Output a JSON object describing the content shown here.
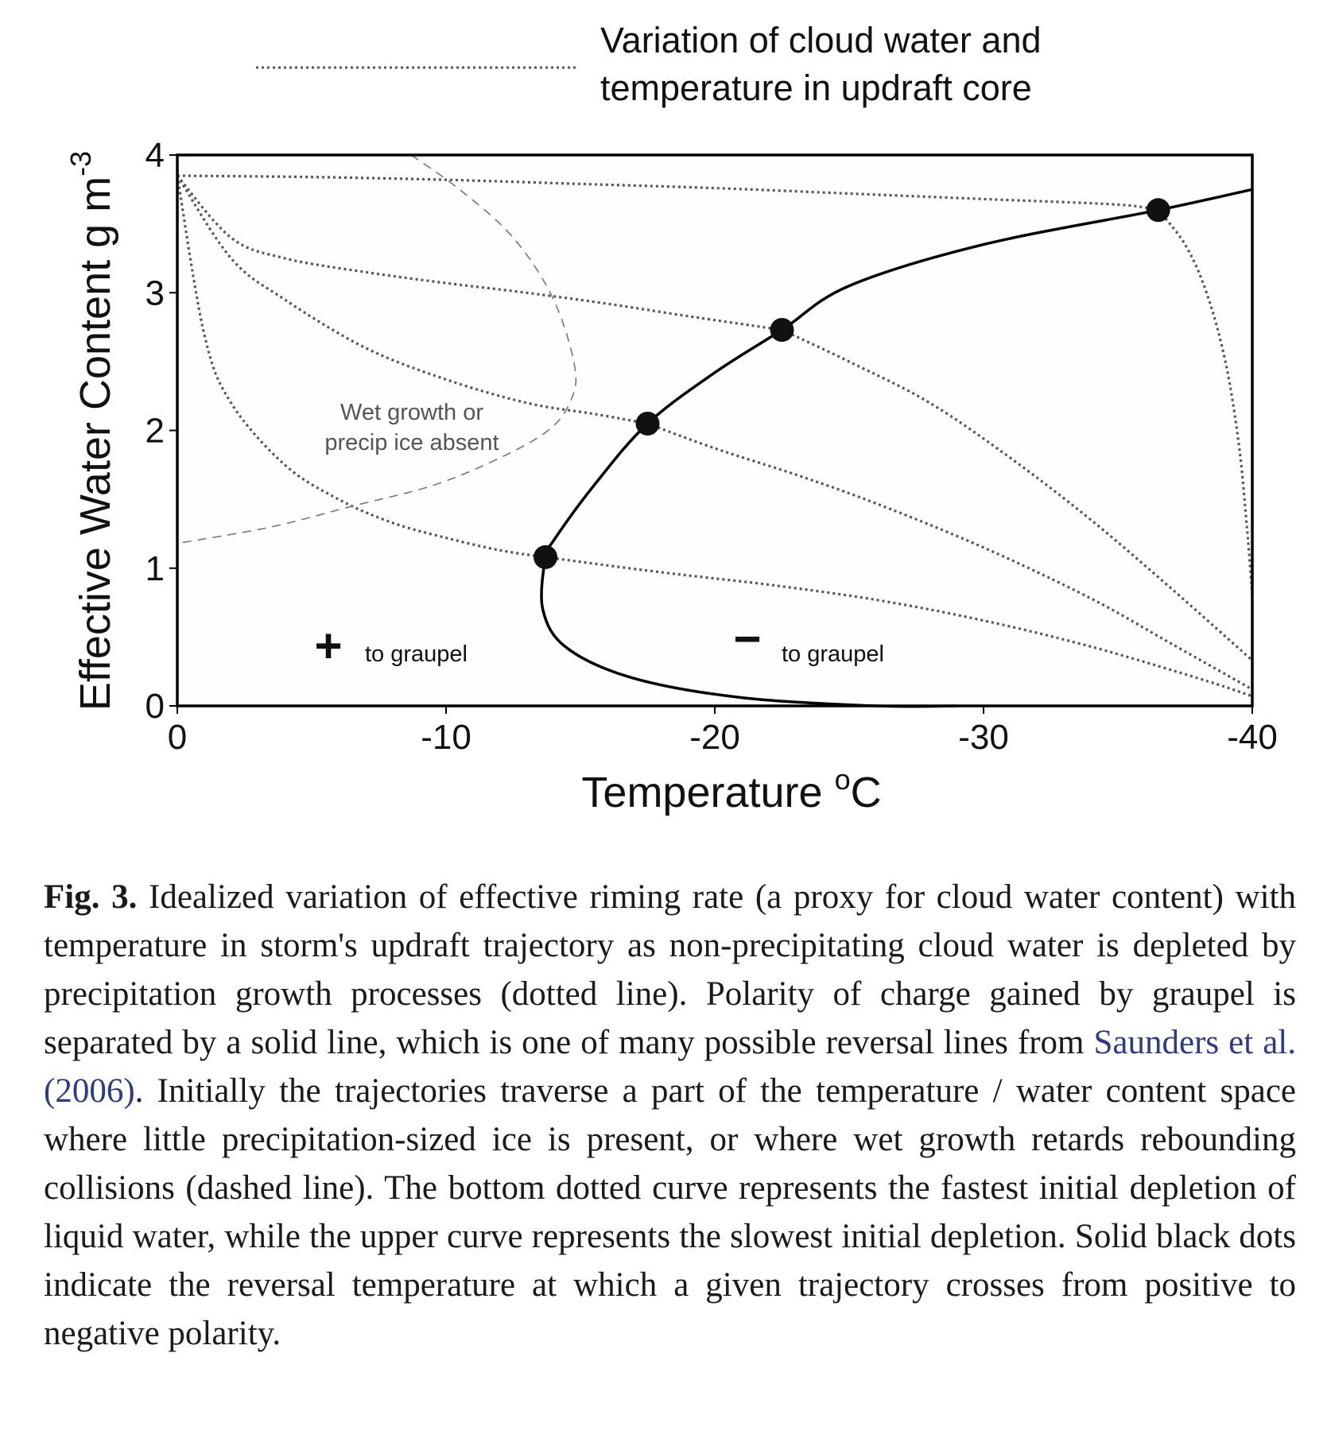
{
  "chart_data": {
    "type": "line",
    "legend": {
      "placement": "top",
      "entries": [
        {
          "style": "dotted",
          "label_line1": "Variation of cloud water and",
          "label_line2": "temperature in updraft core"
        }
      ]
    },
    "xlabel_text": "Temperature ",
    "xlabel_sup": "o",
    "xlabel_unit": "C",
    "ylabel_text": "Effective Water Content  g m",
    "ylabel_sup": "-3",
    "xlim": [
      0,
      -40
    ],
    "ylim": [
      0,
      4
    ],
    "x_ticks": [
      "0",
      "-10",
      "-20",
      "-30",
      "-40"
    ],
    "y_ticks": [
      "0",
      "1",
      "2",
      "3",
      "4"
    ],
    "x_tick_values": [
      0,
      -10,
      -20,
      -30,
      -40
    ],
    "y_tick_values": [
      0,
      1,
      2,
      3,
      4
    ],
    "grid": false,
    "dotted_trajectories": [
      {
        "x": [
          0,
          -5,
          -10,
          -15,
          -20,
          -25,
          -30,
          -35,
          -36.5
        ],
        "y": [
          3.85,
          3.84,
          3.82,
          3.79,
          3.76,
          3.72,
          3.68,
          3.64,
          3.6
        ]
      },
      {
        "x": [
          -36.5,
          -37.5,
          -38.3,
          -39,
          -39.5,
          -39.8,
          -40
        ],
        "y": [
          3.6,
          3.35,
          3.0,
          2.5,
          1.9,
          1.3,
          0.8
        ]
      },
      {
        "x": [
          0,
          -2,
          -4,
          -7,
          -10,
          -13,
          -16,
          -19,
          -22.5
        ],
        "y": [
          3.85,
          3.4,
          3.25,
          3.15,
          3.07,
          3.0,
          2.92,
          2.83,
          2.73
        ]
      },
      {
        "x": [
          -22.5,
          -25,
          -28,
          -31,
          -34,
          -37,
          -40
        ],
        "y": [
          2.73,
          2.5,
          2.2,
          1.8,
          1.35,
          0.85,
          0.33
        ]
      },
      {
        "x": [
          0,
          -2,
          -4,
          -7,
          -10,
          -13,
          -15.5,
          -17.5
        ],
        "y": [
          3.85,
          3.25,
          2.95,
          2.6,
          2.37,
          2.2,
          2.12,
          2.05
        ]
      },
      {
        "x": [
          -17.5,
          -20,
          -23,
          -26,
          -30,
          -34,
          -37,
          -40
        ],
        "y": [
          2.05,
          1.87,
          1.68,
          1.47,
          1.15,
          0.78,
          0.45,
          0.12
        ]
      },
      {
        "x": [
          0,
          -1,
          -2,
          -4,
          -6,
          -8,
          -10,
          -12,
          -13.7
        ],
        "y": [
          3.85,
          2.7,
          2.2,
          1.75,
          1.5,
          1.33,
          1.22,
          1.13,
          1.08
        ]
      },
      {
        "x": [
          -13.7,
          -18,
          -22,
          -26,
          -30,
          -34,
          -38,
          -40
        ],
        "y": [
          1.08,
          0.97,
          0.88,
          0.77,
          0.62,
          0.43,
          0.2,
          0.07
        ]
      }
    ],
    "reversal_line": {
      "style": "solid",
      "x": [
        -40,
        -36.5,
        -30,
        -25,
        -22.5,
        -20,
        -17.5,
        -15.5,
        -14,
        -13.7,
        -13.6,
        -14.5,
        -17,
        -21,
        -26,
        -29
      ],
      "y": [
        3.75,
        3.6,
        3.35,
        3.05,
        2.73,
        2.42,
        2.05,
        1.6,
        1.2,
        1.08,
        0.7,
        0.42,
        0.2,
        0.06,
        0.0,
        0.0
      ]
    },
    "wet_growth_boundary": {
      "style": "dashed",
      "x": [
        -8.7,
        -10.5,
        -12.5,
        -14,
        -14.8,
        -14.6,
        -13.8,
        -12,
        -9.5,
        -6.5,
        -3.5,
        0
      ],
      "y": [
        4.0,
        3.75,
        3.4,
        2.95,
        2.45,
        2.2,
        2.0,
        1.8,
        1.6,
        1.45,
        1.3,
        1.18
      ]
    },
    "reversal_points": [
      {
        "x": -36.5,
        "y": 3.6
      },
      {
        "x": -22.5,
        "y": 2.73
      },
      {
        "x": -17.5,
        "y": 2.05
      },
      {
        "x": -13.7,
        "y": 1.08
      }
    ],
    "annotations": {
      "wet_growth_line1": "Wet growth or",
      "wet_growth_line2": "precip ice absent",
      "positive_sign": "+",
      "positive_label": "to graupel",
      "negative_sign": "−",
      "negative_label": "to graupel"
    }
  },
  "caption": {
    "fig_label": "Fig. 3.",
    "text_before_ref": " Idealized variation of effective riming rate (a proxy for cloud water content) with temperature in storm's updraft trajectory as non-precipitating cloud water is depleted by precipitation growth processes (dotted line). Polarity of charge gained by graupel is separated by a solid line, which is one of many possible reversal lines from ",
    "ref": "Saunders et al. (2006)",
    "text_after_ref": ". Initially the trajectories traverse a part of the temperature / water content space where little precipitation-sized ice is present, or where wet growth retards rebounding collisions (dashed line). The bottom dotted curve represents the fastest initial depletion of liquid water, while the upper curve represents the slowest initial depletion. Solid black dots indicate the reversal temperature at which a given trajectory crosses from positive to negative polarity."
  }
}
